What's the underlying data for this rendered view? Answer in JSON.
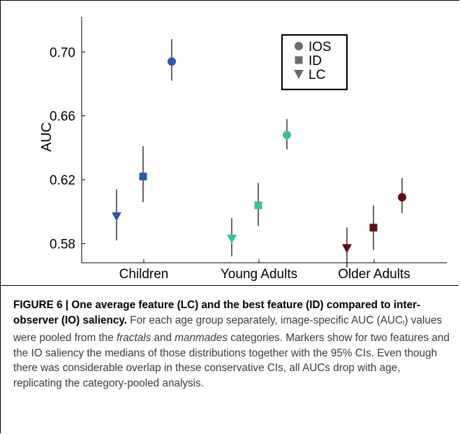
{
  "chart_data": {
    "type": "scatter",
    "title": "",
    "xlabel": "",
    "ylabel": "AUC",
    "ylim": [
      0.568,
      0.722
    ],
    "yticks": [
      0.58,
      0.62,
      0.66,
      0.7
    ],
    "ytick_labels": [
      "0.58",
      "0.62",
      "0.66",
      "0.70"
    ],
    "categories": [
      "Children",
      "Young Adults",
      "Older Adults"
    ],
    "grid": false,
    "legend_position": "top-right",
    "series": [
      {
        "name": "IOS",
        "marker": "circle",
        "points": [
          {
            "category": "Children",
            "value": 0.694,
            "ci": [
              0.682,
              0.708
            ],
            "color": "#2e59a8"
          },
          {
            "category": "Young Adults",
            "value": 0.648,
            "ci": [
              0.639,
              0.658
            ],
            "color": "#3dbf94"
          },
          {
            "category": "Older Adults",
            "value": 0.609,
            "ci": [
              0.599,
              0.621
            ],
            "color": "#5e1016"
          }
        ]
      },
      {
        "name": "ID",
        "marker": "square",
        "points": [
          {
            "category": "Children",
            "value": 0.622,
            "ci": [
              0.606,
              0.641
            ],
            "color": "#2e59a8"
          },
          {
            "category": "Young Adults",
            "value": 0.604,
            "ci": [
              0.591,
              0.618
            ],
            "color": "#3dbf94"
          },
          {
            "category": "Older Adults",
            "value": 0.59,
            "ci": [
              0.576,
              0.604
            ],
            "color": "#5e1016"
          }
        ]
      },
      {
        "name": "LC",
        "marker": "triangle-down",
        "points": [
          {
            "category": "Children",
            "value": 0.597,
            "ci": [
              0.582,
              0.614
            ],
            "color": "#2e59a8"
          },
          {
            "category": "Young Adults",
            "value": 0.583,
            "ci": [
              0.572,
              0.596
            ],
            "color": "#3dbf94"
          },
          {
            "category": "Older Adults",
            "value": 0.577,
            "ci": [
              0.565,
              0.59
            ],
            "color": "#5e1016"
          }
        ]
      }
    ],
    "legend_marker_color": "#6b6b6b"
  },
  "caption": {
    "heading": "FIGURE 6 | One average feature (LC) and the best feature (ID) compared to inter-observer (IO) saliency.",
    "seg1": " For each age group separately, image-specific AUC (AUC",
    "subscript": "I",
    "seg2": ") values were pooled from the ",
    "italic1": "fractals",
    "seg3": " and ",
    "italic2": "manmades",
    "seg4": " categories. Markers show for two features and the IO saliency the medians of those distributions together with the 95% CIs. Even though there was considerable overlap in these conservative CIs, all AUCs drop with age, replicating the category-pooled analysis."
  }
}
